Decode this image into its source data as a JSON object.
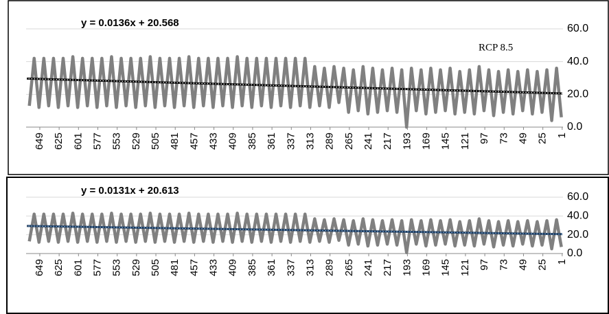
{
  "chart_data": [
    {
      "type": "line",
      "x": [
        2,
        8,
        14,
        20,
        26,
        32,
        38,
        44,
        50,
        56,
        62,
        68,
        74,
        80,
        86,
        92,
        98,
        104,
        110,
        116,
        122,
        128,
        134,
        140,
        146,
        152,
        158,
        164,
        170,
        176,
        182,
        188,
        194,
        200,
        206,
        212,
        218,
        224,
        230,
        236,
        242,
        248,
        254,
        260,
        266,
        272,
        278,
        284,
        290,
        296,
        302,
        308,
        314,
        320,
        326,
        332,
        338,
        344,
        350,
        356,
        362,
        368,
        374,
        380,
        386,
        392,
        398,
        404,
        410,
        416,
        422,
        428,
        434,
        440,
        446,
        452,
        458,
        464,
        470,
        476,
        482,
        488,
        494,
        500,
        506,
        512,
        518,
        524,
        530,
        536,
        542,
        548,
        554,
        560,
        566,
        572,
        578,
        584,
        590,
        596,
        602,
        608,
        614,
        620,
        626,
        632,
        638,
        644,
        650,
        656,
        662
      ],
      "series": [
        {
          "color": "#808080",
          "values": [
            6,
            36,
            4,
            35,
            9,
            34,
            8,
            35,
            10,
            34,
            8,
            35,
            9,
            34,
            7,
            35,
            10,
            37,
            8,
            35,
            9,
            34,
            8,
            36,
            10,
            35,
            9,
            36,
            8,
            35,
            10,
            36,
            0,
            35,
            9,
            36,
            10,
            35,
            9,
            36,
            8,
            37,
            10,
            35,
            9,
            36,
            15,
            37,
            12,
            36,
            13,
            37,
            12,
            42,
            13,
            42,
            12,
            42,
            13,
            42,
            12,
            42,
            13,
            42,
            12,
            42,
            13,
            43,
            12,
            42,
            13,
            42,
            12,
            42,
            13,
            42,
            12,
            43,
            13,
            42,
            12,
            42,
            13,
            42,
            12,
            43,
            13,
            42,
            12,
            42,
            13,
            42,
            12,
            43,
            13,
            42,
            12,
            42,
            13,
            42,
            12,
            43,
            13,
            42,
            12,
            42,
            13,
            42,
            12,
            42,
            13
          ]
        }
      ],
      "trendline": {
        "equation": "y = 0.0136x + 20.568",
        "x": [
          1,
          665
        ],
        "values": [
          20.58,
          29.61
        ],
        "color": "#000000"
      },
      "annotation": "RCP 8.5",
      "xlim": [
        666,
        0
      ],
      "xticks": [
        1,
        25,
        49,
        73,
        97,
        121,
        145,
        169,
        193,
        217,
        241,
        265,
        289,
        313,
        337,
        361,
        385,
        409,
        433,
        457,
        481,
        505,
        529,
        553,
        577,
        601,
        625,
        649
      ],
      "ylim": [
        0,
        60
      ],
      "yticks": [
        {
          "value": 0,
          "label": "0.0"
        },
        {
          "value": 20,
          "label": "20.0"
        },
        {
          "value": 40,
          "label": "40.0"
        },
        {
          "value": 60,
          "label": "60.0"
        }
      ],
      "grid": true
    },
    {
      "type": "line",
      "x": [
        2,
        8,
        14,
        20,
        26,
        32,
        38,
        44,
        50,
        56,
        62,
        68,
        74,
        80,
        86,
        92,
        98,
        104,
        110,
        116,
        122,
        128,
        134,
        140,
        146,
        152,
        158,
        164,
        170,
        176,
        182,
        188,
        194,
        200,
        206,
        212,
        218,
        224,
        230,
        236,
        242,
        248,
        254,
        260,
        266,
        272,
        278,
        284,
        290,
        296,
        302,
        308,
        314,
        320,
        326,
        332,
        338,
        344,
        350,
        356,
        362,
        368,
        374,
        380,
        386,
        392,
        398,
        404,
        410,
        416,
        422,
        428,
        434,
        440,
        446,
        452,
        458,
        464,
        470,
        476,
        482,
        488,
        494,
        500,
        506,
        512,
        518,
        524,
        530,
        536,
        542,
        548,
        554,
        560,
        566,
        572,
        578,
        584,
        590,
        596,
        602,
        608,
        614,
        620,
        626,
        632,
        638,
        644,
        650,
        656,
        662
      ],
      "series": [
        {
          "color": "#808080",
          "values": [
            7,
            36,
            5,
            35,
            9,
            34,
            8,
            35,
            10,
            34,
            8,
            35,
            9,
            34,
            7,
            35,
            10,
            37,
            8,
            35,
            9,
            34,
            8,
            36,
            10,
            35,
            9,
            36,
            8,
            35,
            10,
            36,
            1,
            35,
            9,
            36,
            10,
            35,
            9,
            36,
            8,
            37,
            10,
            35,
            9,
            36,
            14,
            37,
            12,
            36,
            13,
            37,
            12,
            42,
            13,
            42,
            12,
            42,
            13,
            42,
            12,
            42,
            13,
            42,
            12,
            42,
            13,
            43,
            12,
            42,
            13,
            42,
            12,
            42,
            13,
            42,
            12,
            43,
            13,
            42,
            12,
            42,
            13,
            42,
            12,
            43,
            13,
            42,
            12,
            42,
            13,
            42,
            12,
            43,
            13,
            42,
            12,
            42,
            13,
            42,
            12,
            43,
            13,
            42,
            12,
            42,
            13,
            42,
            12,
            42,
            13
          ]
        }
      ],
      "trendline": {
        "equation": "y = 0.0131x + 20.613",
        "x": [
          1,
          665
        ],
        "values": [
          20.63,
          29.33
        ],
        "color": "#1f3b5c"
      },
      "xlim": [
        666,
        0
      ],
      "xticks": [
        1,
        25,
        49,
        73,
        97,
        121,
        145,
        169,
        193,
        217,
        241,
        265,
        289,
        313,
        337,
        361,
        385,
        409,
        433,
        457,
        481,
        505,
        529,
        553,
        577,
        601,
        625,
        649
      ],
      "ylim": [
        0,
        60
      ],
      "yticks": [
        {
          "value": 0,
          "label": "0.0"
        },
        {
          "value": 20,
          "label": "20.0"
        },
        {
          "value": 40,
          "label": "40.0"
        },
        {
          "value": 60,
          "label": "60.0"
        }
      ],
      "grid": true
    }
  ]
}
